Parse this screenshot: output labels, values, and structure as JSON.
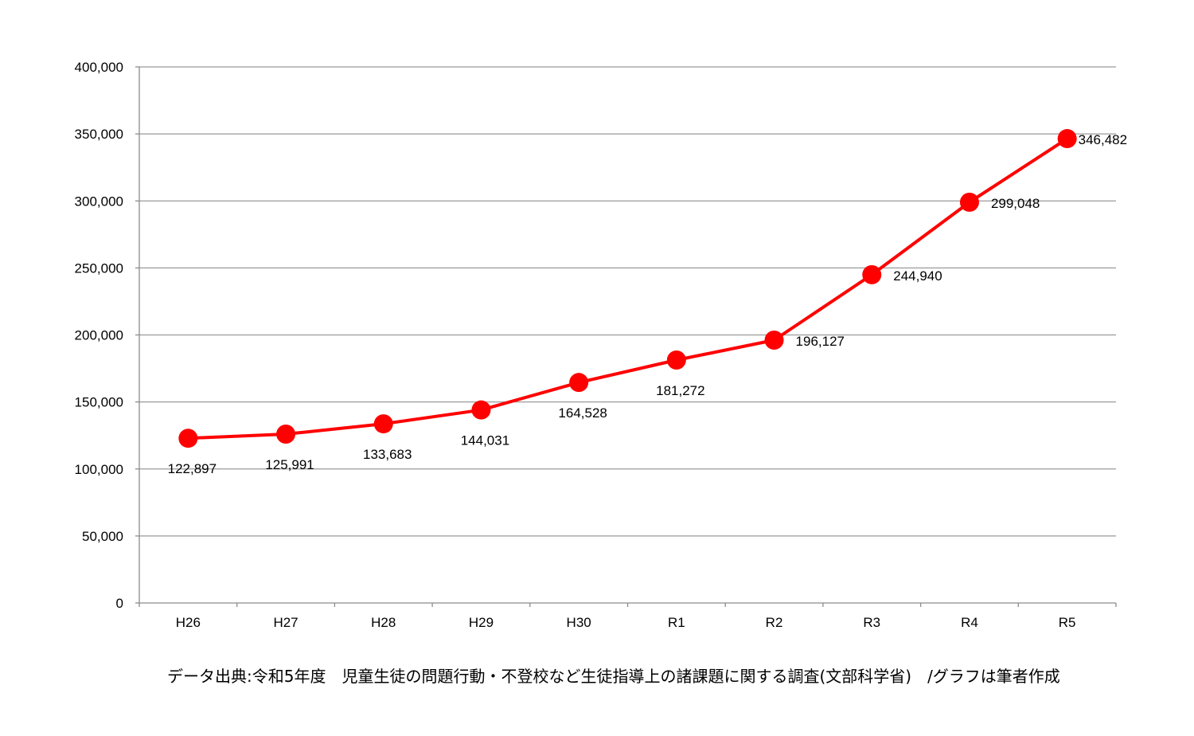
{
  "chart_data": {
    "type": "line",
    "categories": [
      "H26",
      "H27",
      "H28",
      "H29",
      "H30",
      "R1",
      "R2",
      "R3",
      "R4",
      "R5"
    ],
    "values": [
      122897,
      125991,
      133683,
      144031,
      164528,
      181272,
      196127,
      244940,
      299048,
      346482
    ],
    "data_labels": [
      "122,897",
      "125,991",
      "133,683",
      "144,031",
      "164,528",
      "181,272",
      "196,127",
      "244,940",
      "299,048",
      "346,482"
    ],
    "ylim": [
      0,
      400000
    ],
    "yticks": [
      0,
      50000,
      100000,
      150000,
      200000,
      250000,
      300000,
      350000,
      400000
    ],
    "ytick_labels": [
      "0",
      "50,000",
      "100,000",
      "150,000",
      "200,000",
      "250,000",
      "300,000",
      "350,000",
      "400,000"
    ],
    "grid": "horizontal",
    "markers": true,
    "colors": {
      "line": "#ff0000",
      "marker": "#ff0000",
      "grid": "#9a9a9a",
      "axis": "#8c8c8c"
    }
  },
  "caption": "データ出典:令和5年度　児童生徒の問題行動・不登校など生徒指導上の諸課題に関する調査(文部科学省)　/グラフは筆者作成"
}
